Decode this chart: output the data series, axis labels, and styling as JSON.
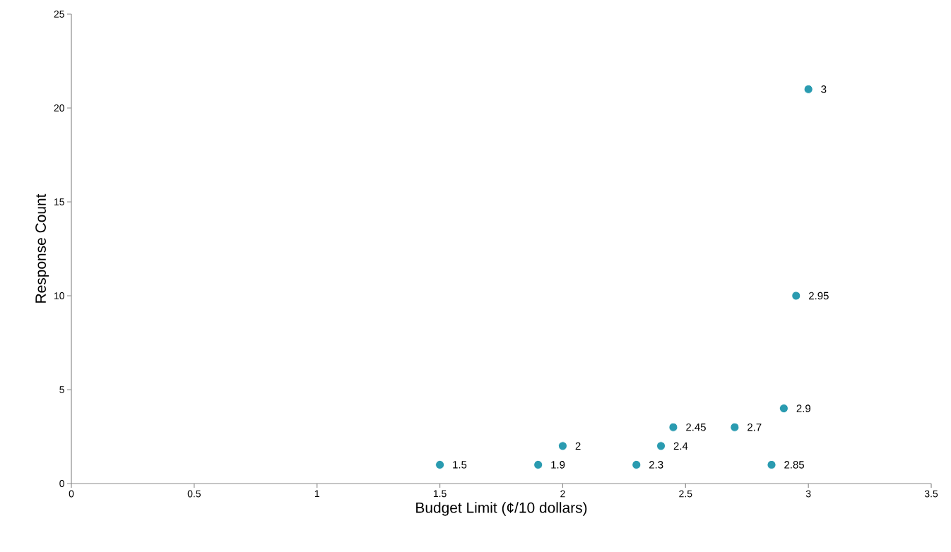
{
  "chart_data": {
    "type": "scatter",
    "xlabel": "Budget Limit (¢/10 dollars)",
    "ylabel": "Response Count",
    "x": [
      1.5,
      1.9,
      2,
      2.3,
      2.4,
      2.45,
      2.7,
      2.85,
      2.9,
      2.95,
      3
    ],
    "values": [
      1,
      1,
      2,
      1,
      2,
      3,
      3,
      1,
      4,
      10,
      21
    ],
    "annotations": [
      {
        "text": "1.5",
        "x": 1.5,
        "y": 1
      },
      {
        "text": "1.9",
        "x": 1.9,
        "y": 1
      },
      {
        "text": "2",
        "x": 2,
        "y": 2
      },
      {
        "text": "2.3",
        "x": 2.3,
        "y": 1
      },
      {
        "text": "2.4",
        "x": 2.4,
        "y": 2
      },
      {
        "text": "2.45",
        "x": 2.45,
        "y": 3
      },
      {
        "text": "2.7",
        "x": 2.7,
        "y": 3
      },
      {
        "text": "2.85",
        "x": 2.85,
        "y": 1
      },
      {
        "text": "2.9",
        "x": 2.9,
        "y": 4
      },
      {
        "text": "2.95",
        "x": 2.95,
        "y": 10
      },
      {
        "text": "3",
        "x": 3,
        "y": 21
      }
    ],
    "color": "#2a9bb0",
    "marker": "circle",
    "xlim": [
      0,
      3.5
    ],
    "xticks": [
      0,
      0.5,
      1,
      1.5,
      2,
      2.5,
      3,
      3.5
    ],
    "ylim": [
      0,
      25
    ],
    "yticks": [
      0,
      5,
      10,
      15,
      20,
      25
    ],
    "grid": false
  }
}
